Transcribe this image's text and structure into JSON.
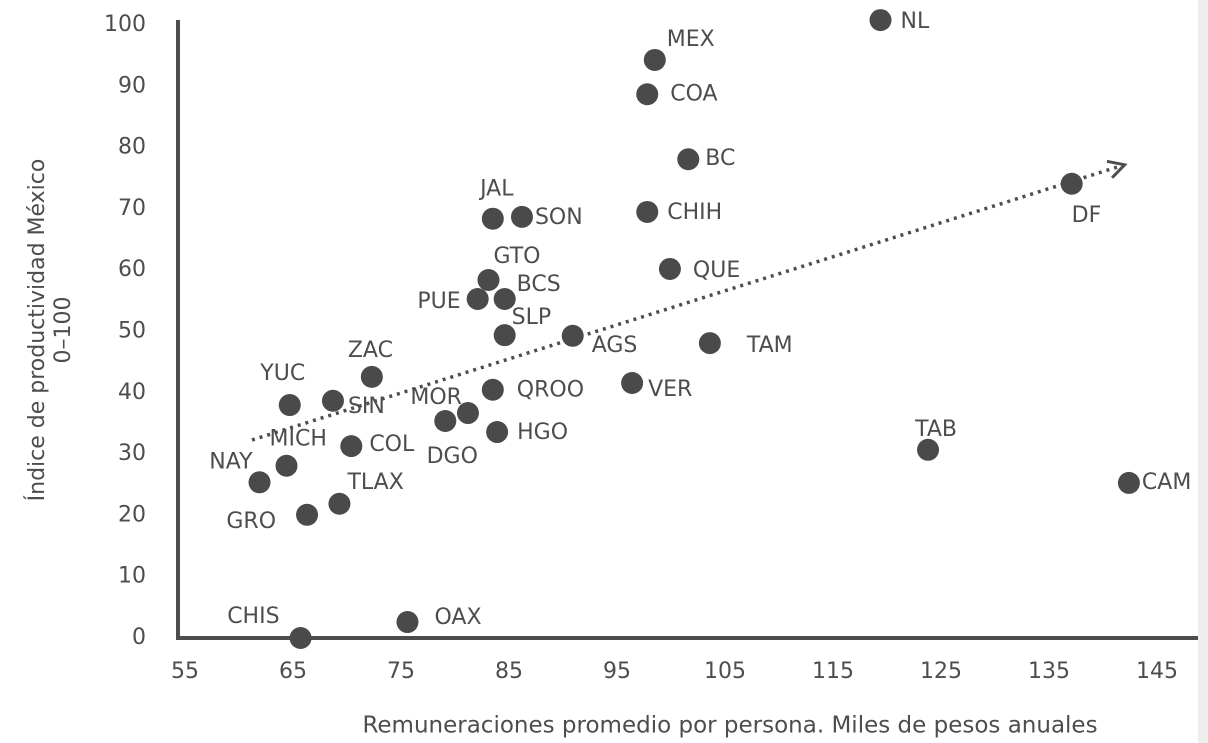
{
  "chart_data": {
    "type": "scatter",
    "xlabel": "Remuneraciones promedio por persona. Miles de pesos anuales",
    "ylabel": [
      "Índice de productividad México",
      "0–100"
    ],
    "xlim": [
      55,
      145
    ],
    "xticks": [
      55,
      65,
      75,
      85,
      95,
      105,
      115,
      125,
      135,
      145
    ],
    "ylim": [
      0,
      100
    ],
    "yticks": [
      0,
      10,
      20,
      30,
      40,
      50,
      60,
      70,
      80,
      90,
      100
    ],
    "color": "#4a4a4a",
    "series": [
      {
        "labels": [
          "NL",
          "MEX",
          "COA",
          "BC",
          "DF",
          "JAL",
          "SON",
          "CHIH",
          "QUE",
          "GTO",
          "PUE",
          "BCS",
          "SLP",
          "AGS",
          "TAM",
          "ZAC",
          "YUC",
          "SIN",
          "QROO",
          "VER",
          "MOR",
          "DGO",
          "HGO",
          "COL",
          "MICH",
          "TAB",
          "NAY",
          "CAM",
          "TLAX",
          "GRO",
          "CHIS",
          "OAX"
        ],
        "x": [
          119.4,
          98.5,
          97.8,
          101.6,
          137.1,
          83.5,
          86.2,
          97.8,
          99.9,
          83.1,
          82.1,
          84.6,
          84.6,
          90.9,
          103.6,
          72.3,
          64.7,
          68.7,
          83.5,
          96.4,
          81.2,
          79.1,
          83.9,
          70.4,
          64.4,
          123.8,
          61.9,
          142.4,
          69.3,
          66.3,
          65.7,
          75.6
        ],
        "values": [
          100.8,
          94.3,
          88.7,
          78.1,
          74.1,
          68.4,
          68.7,
          69.5,
          60.2,
          58.4,
          55.3,
          55.3,
          49.4,
          49.3,
          48.1,
          42.6,
          38.0,
          38.7,
          40.5,
          41.6,
          36.7,
          35.4,
          33.6,
          31.3,
          28.1,
          30.7,
          25.4,
          25.3,
          21.9,
          20.1,
          0,
          2.6
        ]
      }
    ],
    "trend": {
      "x": [
        61.2,
        142.0
      ],
      "y": [
        32.3,
        77.2
      ]
    }
  }
}
